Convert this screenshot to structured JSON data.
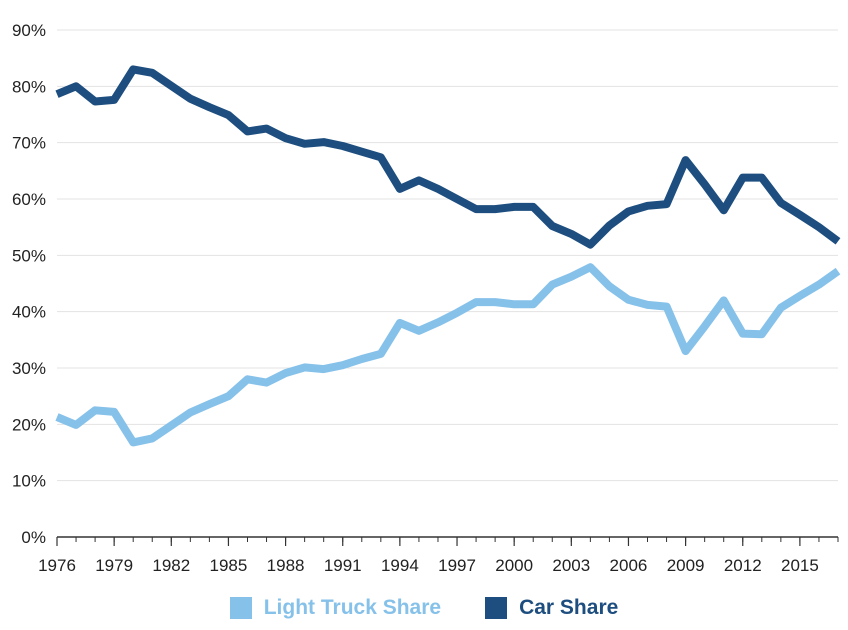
{
  "chart_data": {
    "type": "line",
    "title": "",
    "xlabel": "",
    "ylabel": "",
    "ylim": [
      0,
      90
    ],
    "y_ticks": [
      "0%",
      "10%",
      "20%",
      "30%",
      "40%",
      "50%",
      "60%",
      "70%",
      "80%",
      "90%"
    ],
    "x_ticks": [
      "1976",
      "1979",
      "1982",
      "1985",
      "1988",
      "1991",
      "1994",
      "1997",
      "2000",
      "2003",
      "2006",
      "2009",
      "2012",
      "2015"
    ],
    "x": [
      1976,
      1977,
      1978,
      1979,
      1980,
      1981,
      1982,
      1983,
      1984,
      1985,
      1986,
      1987,
      1988,
      1989,
      1990,
      1991,
      1992,
      1993,
      1994,
      1995,
      1996,
      1997,
      1998,
      1999,
      2000,
      2001,
      2002,
      2003,
      2004,
      2005,
      2006,
      2007,
      2008,
      2009,
      2010,
      2011,
      2012,
      2013,
      2014,
      2015,
      2016,
      2017
    ],
    "series": [
      {
        "name": "Light Truck Share",
        "color": "#86c1ea",
        "values": [
          21.3,
          19.9,
          22.5,
          22.2,
          16.8,
          17.5,
          19.8,
          22.1,
          23.6,
          25.0,
          28.0,
          27.4,
          29.1,
          30.1,
          29.8,
          30.5,
          31.6,
          32.5,
          38.0,
          36.6,
          38.1,
          39.8,
          41.7,
          41.7,
          41.3,
          41.3,
          44.8,
          46.2,
          47.9,
          44.5,
          42.1,
          41.2,
          40.9,
          33.0,
          37.4,
          42.0,
          36.1,
          36.0,
          40.7,
          42.8,
          44.8,
          47.2
        ]
      },
      {
        "name": "Car Share",
        "color": "#1d4e7f",
        "values": [
          78.6,
          80.0,
          77.3,
          77.6,
          83.0,
          82.4,
          80.1,
          77.8,
          76.3,
          74.9,
          72.0,
          72.5,
          70.8,
          69.8,
          70.1,
          69.4,
          68.4,
          67.4,
          61.8,
          63.3,
          61.8,
          60.0,
          58.2,
          58.2,
          58.6,
          58.6,
          55.2,
          53.8,
          51.9,
          55.3,
          57.8,
          58.8,
          59.1,
          66.9,
          62.6,
          58.0,
          63.8,
          63.8,
          59.3,
          57.2,
          55.0,
          52.5
        ]
      }
    ]
  }
}
